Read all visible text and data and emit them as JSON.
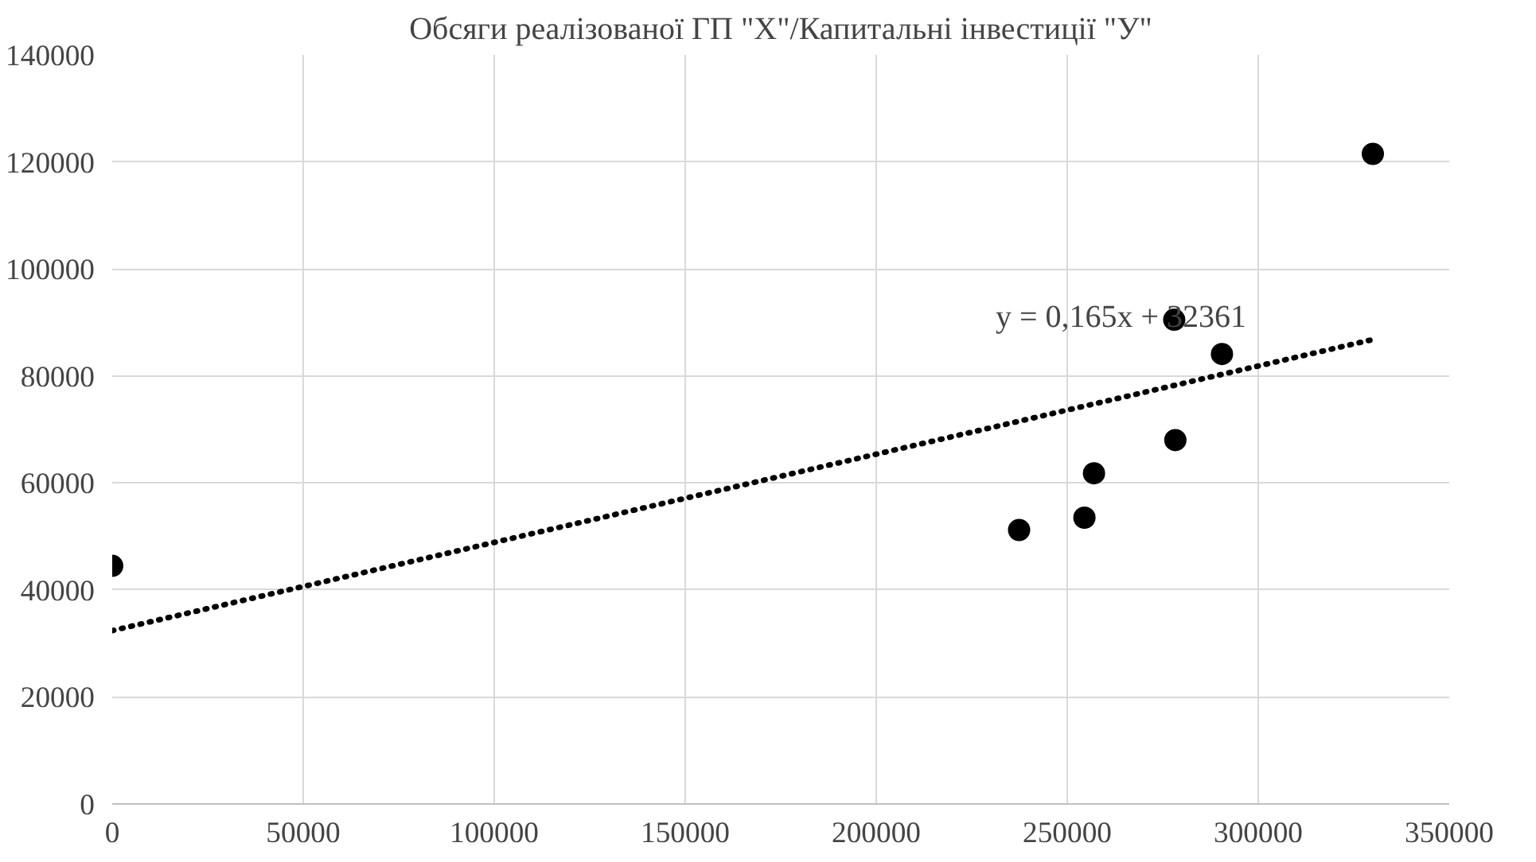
{
  "chart_data": {
    "type": "scatter",
    "title": "Обсяги реалізованої ГП \"Х\"/Капитальні інвестиції \"У\"",
    "xlim": [
      0,
      350000
    ],
    "xticks": [
      0,
      50000,
      100000,
      150000,
      200000,
      250000,
      300000,
      350000
    ],
    "ylim": [
      0,
      140000
    ],
    "yticks": [
      0,
      20000,
      40000,
      60000,
      80000,
      100000,
      120000,
      140000
    ],
    "grid": true,
    "marker": "circle",
    "series": [
      {
        "color": "#000000",
        "x": [
          0,
          237400,
          254500,
          257000,
          278300,
          278000,
          290500,
          330000
        ],
        "values": [
          44500,
          51200,
          53500,
          61800,
          68000,
          90500,
          84100,
          121500
        ]
      },
      {
        "type": "line",
        "color": "#000000",
        "line_style": "dotted",
        "marker": "none",
        "x": [
          0,
          330000
        ],
        "values": [
          32400,
          86800
        ]
      }
    ],
    "annotations": [
      "y = 0,165x + 32361"
    ]
  }
}
